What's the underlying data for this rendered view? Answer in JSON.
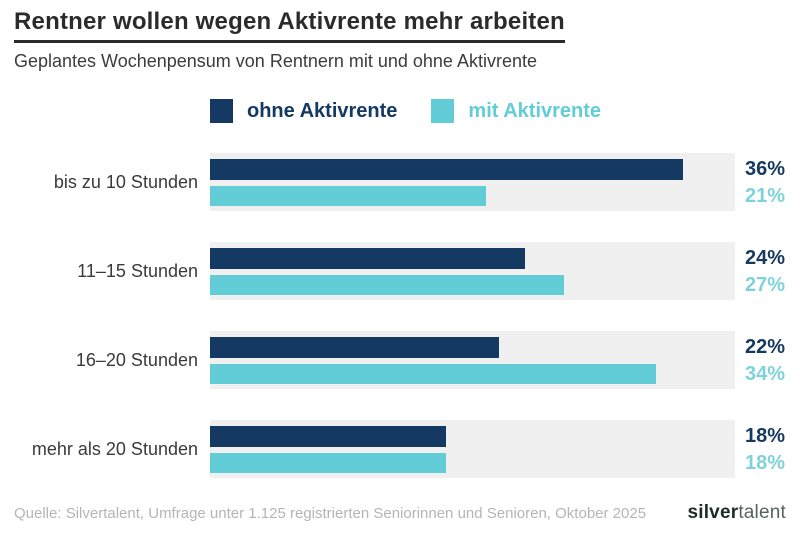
{
  "header": {
    "title": "Rentner wollen wegen Aktivrente mehr arbeiten",
    "subtitle": "Geplantes Wochenpensum von Rentnern mit und ohne Aktivrente"
  },
  "chart_data": {
    "type": "bar",
    "orientation": "horizontal",
    "title": "Rentner wollen wegen Aktivrente mehr arbeiten",
    "subtitle": "Geplantes Wochenpensum von Rentnern mit und ohne Aktivrente",
    "categories": [
      "bis zu 10 Stunden",
      "11–15 Stunden",
      "16–20 Stunden",
      "mehr als 20 Stunden"
    ],
    "series": [
      {
        "name": "ohne Aktivrente",
        "color": "#143a63",
        "value_color": "#16395f",
        "values": [
          36,
          24,
          22,
          18
        ]
      },
      {
        "name": "mit Aktivrente",
        "color": "#62cdd6",
        "value_color": "#7ed3da",
        "values": [
          21,
          27,
          34,
          18
        ]
      }
    ],
    "value_suffix": "%",
    "xlim": [
      0,
      40
    ],
    "grid": false,
    "legend_position": "top",
    "row_background": "#f0f0f0"
  },
  "footer": {
    "source": "Quelle: Silvertalent, Umfrage unter 1.125 registrierten Seniorinnen und Senioren, Oktober 2025",
    "logo_bold": "silver",
    "logo_light": "talent"
  }
}
